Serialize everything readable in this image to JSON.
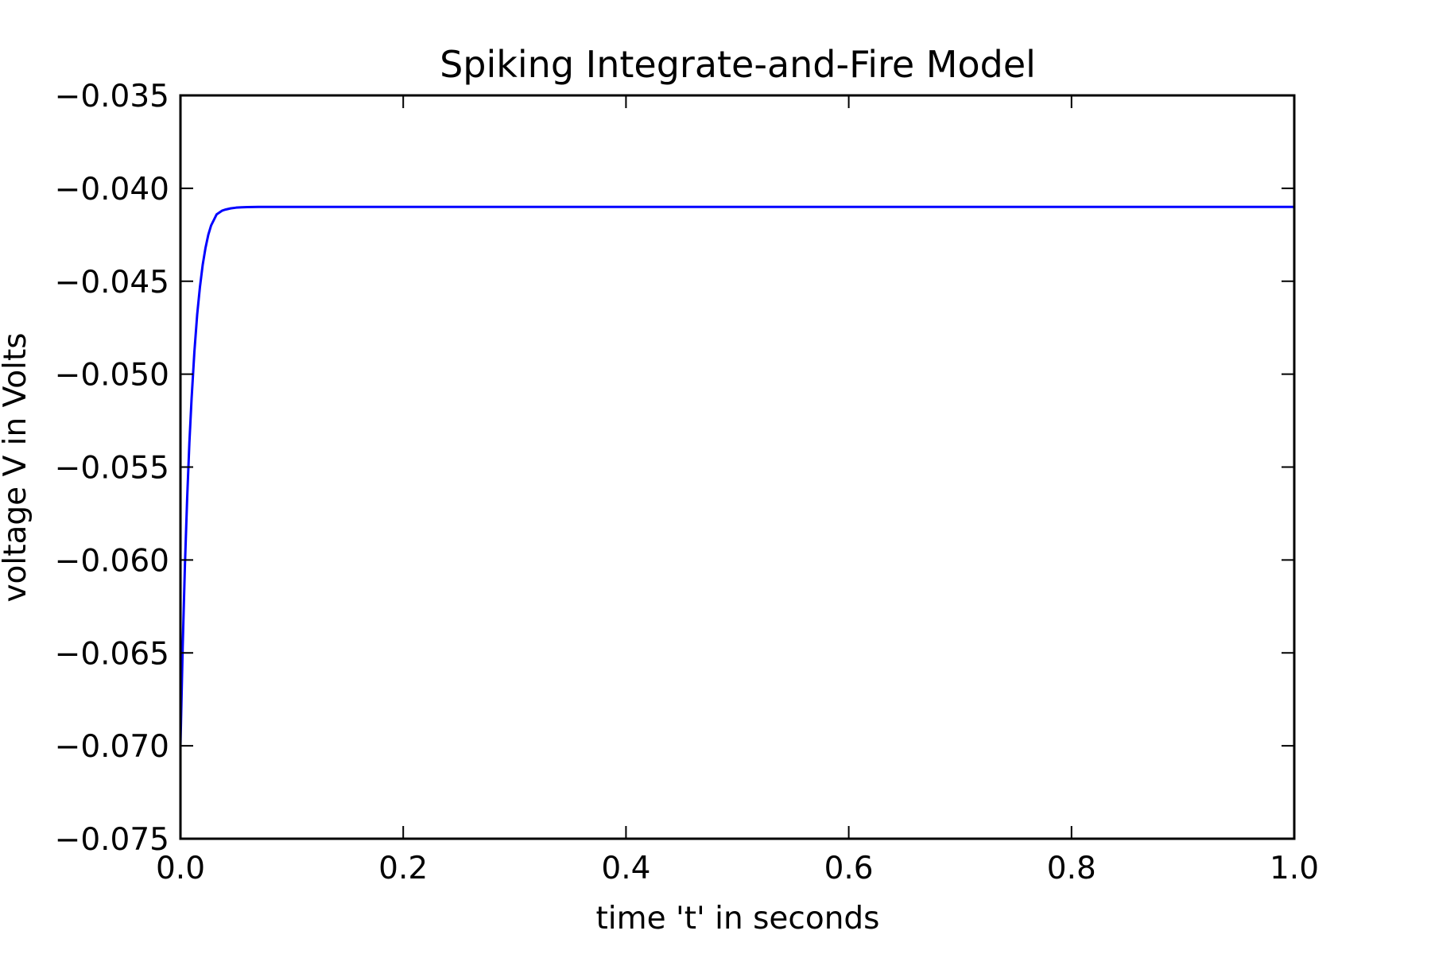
{
  "chart_data": {
    "type": "line",
    "title": "Spiking Integrate-and-Fire Model",
    "xlabel": "time 't' in seconds",
    "ylabel": "voltage V in Volts",
    "xlim": [
      0.0,
      1.0
    ],
    "ylim": [
      -0.075,
      -0.035
    ],
    "xticks": [
      0.0,
      0.2,
      0.4,
      0.6,
      0.8,
      1.0
    ],
    "xtick_labels": [
      "0.0",
      "0.2",
      "0.4",
      "0.6",
      "0.8",
      "1.0"
    ],
    "yticks": [
      -0.075,
      -0.07,
      -0.065,
      -0.06,
      -0.055,
      -0.05,
      -0.045,
      -0.04,
      -0.035
    ],
    "ytick_labels": [
      "−0.075",
      "−0.070",
      "−0.065",
      "−0.060",
      "−0.055",
      "−0.050",
      "−0.045",
      "−0.040",
      "−0.035"
    ],
    "grid": false,
    "series": [
      {
        "color": "#0000ff",
        "x": [
          0.0,
          0.002,
          0.004,
          0.006,
          0.008,
          0.01,
          0.0125,
          0.015,
          0.0175,
          0.02,
          0.0225,
          0.025,
          0.0275,
          0.03,
          0.0325,
          0.035,
          0.0375,
          0.04,
          0.045,
          0.05,
          0.055,
          0.06,
          0.07,
          0.08,
          0.1,
          0.2,
          0.4,
          0.6,
          0.8,
          1.0
        ],
        "y": [
          -0.07,
          -0.0647,
          -0.0603,
          -0.0567,
          -0.0537,
          -0.0513,
          -0.0488,
          -0.0468,
          -0.0453,
          -0.0441,
          -0.0432,
          -0.0425,
          -0.042,
          -0.0417,
          -0.0414,
          -0.0413,
          -0.0412,
          -0.04115,
          -0.04108,
          -0.04104,
          -0.04102,
          -0.04101,
          -0.041,
          -0.041,
          -0.041,
          -0.041,
          -0.041,
          -0.041,
          -0.041,
          -0.041
        ]
      }
    ]
  }
}
